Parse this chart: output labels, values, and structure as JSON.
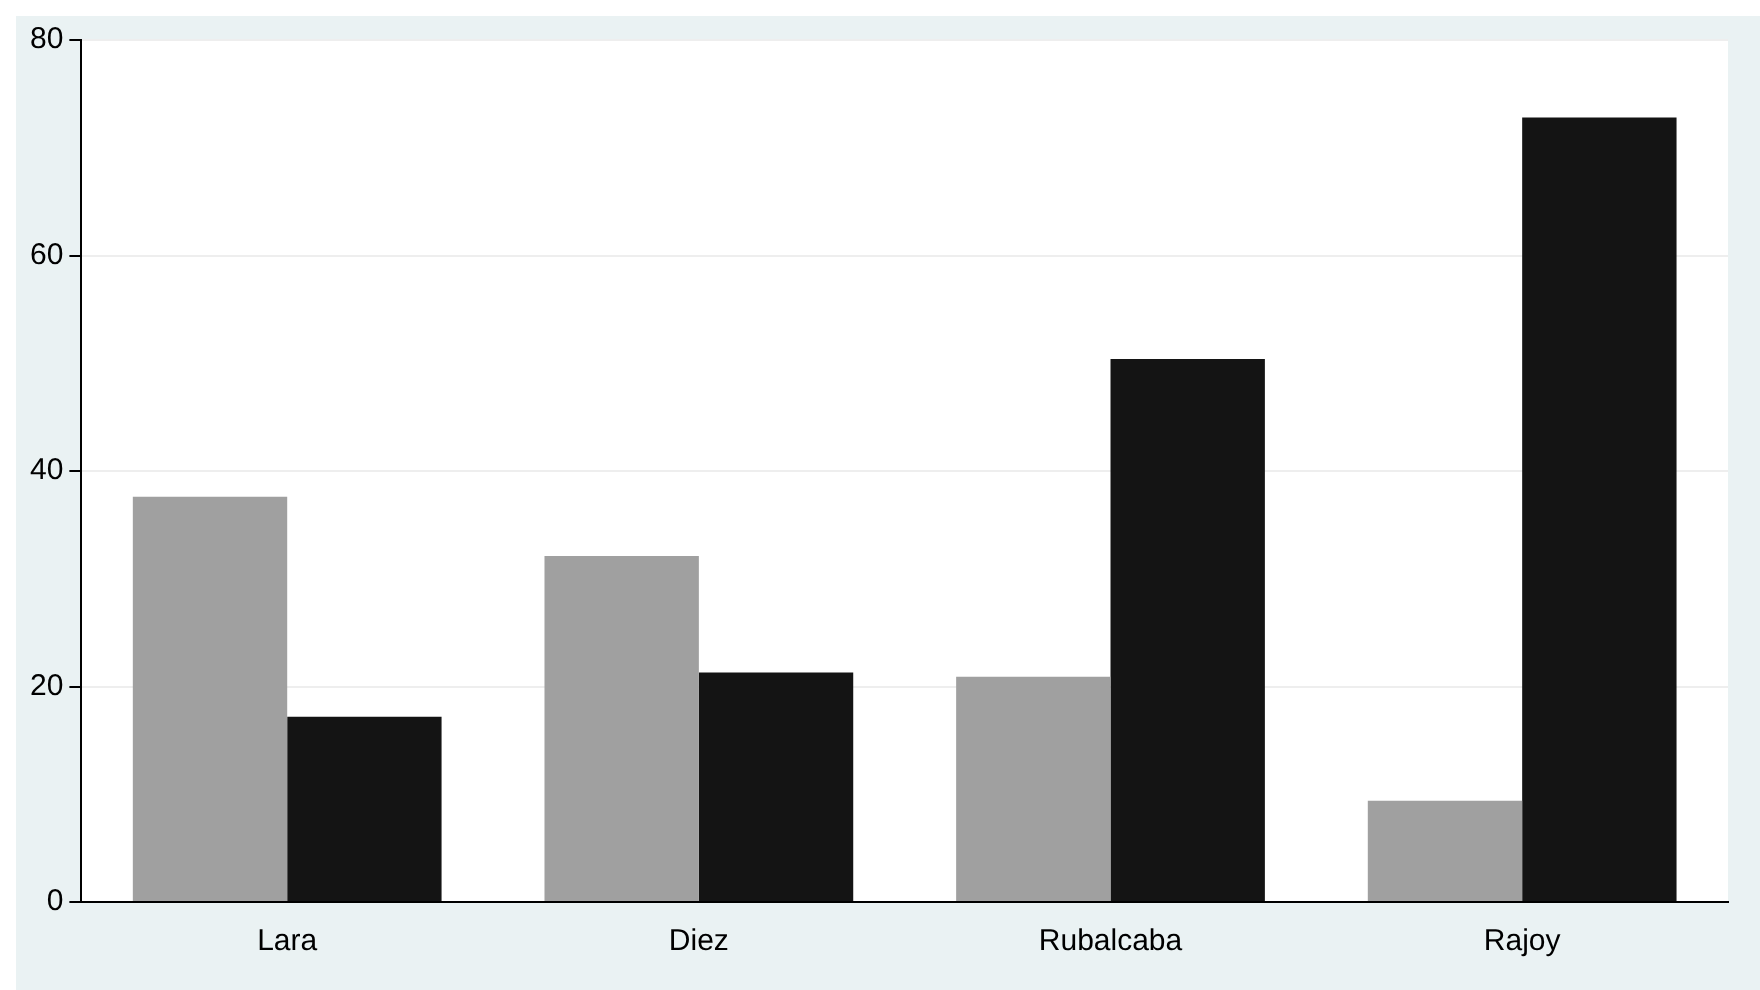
{
  "chart_data": {
    "type": "bar",
    "categories": [
      "Lara",
      "Diez",
      "Rubalcaba",
      "Rajoy"
    ],
    "series": [
      {
        "color": "#a0a0a0",
        "values": [
          37.6,
          32.1,
          20.9,
          9.4
        ]
      },
      {
        "color": "#141414",
        "values": [
          17.2,
          21.3,
          50.4,
          72.8
        ]
      }
    ],
    "ylim": [
      0,
      80
    ],
    "yticks": [
      0,
      20,
      40,
      60,
      80
    ],
    "grid": "y"
  }
}
